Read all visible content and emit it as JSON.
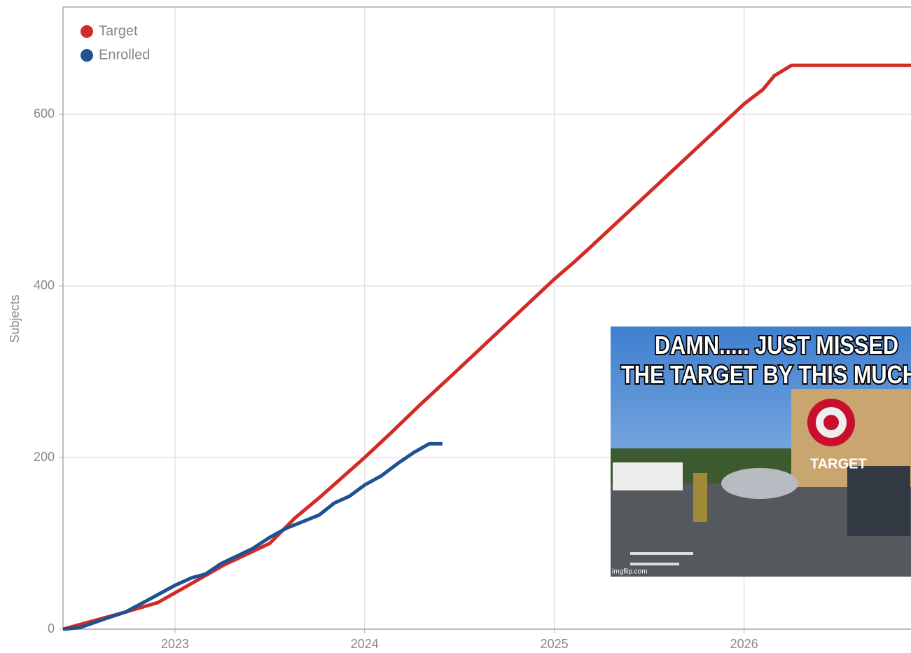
{
  "chart_data": {
    "type": "line",
    "y_label": "Subjects",
    "xlim": [
      2022.41,
      2026.88
    ],
    "xticks": [
      2023,
      2024,
      2025,
      2026
    ],
    "ylim": [
      0,
      725
    ],
    "yticks": [
      0,
      200,
      400,
      600
    ],
    "grid": true,
    "legend": "top-left",
    "series": [
      {
        "name": "Target",
        "color": "#d22b26",
        "x": [
          2022.41,
          2022.74,
          2022.91,
          2023.07,
          2023.26,
          2023.5,
          2023.63,
          2023.76,
          2024.0,
          2024.14,
          2024.29,
          2024.48,
          2025.0,
          2025.1,
          2025.18,
          2026.0,
          2026.1,
          2026.16,
          2026.25,
          2026.88
        ],
        "values": [
          0,
          20,
          31,
          51,
          75,
          100,
          129,
          153,
          200,
          229,
          261,
          300,
          408,
          427,
          443,
          612,
          629,
          645,
          657,
          657
        ]
      },
      {
        "name": "Enrolled",
        "color": "#1f5193",
        "x": [
          2022.41,
          2022.5,
          2022.63,
          2022.74,
          2022.85,
          2023.0,
          2023.09,
          2023.16,
          2023.24,
          2023.41,
          2023.5,
          2023.59,
          2023.66,
          2023.76,
          2023.84,
          2023.92,
          2024.0,
          2024.09,
          2024.18,
          2024.26,
          2024.34,
          2024.41
        ],
        "values": [
          0,
          2,
          12,
          20,
          33,
          51,
          60,
          64,
          76,
          94,
          107,
          118,
          124,
          133,
          147,
          155,
          168,
          179,
          194,
          206,
          216,
          216
        ]
      }
    ],
    "annotations": [
      "DAMN..... JUST MISSED",
      "THE TARGET BY THIS MUCH",
      "TARGET",
      "imgflip.com"
    ]
  }
}
